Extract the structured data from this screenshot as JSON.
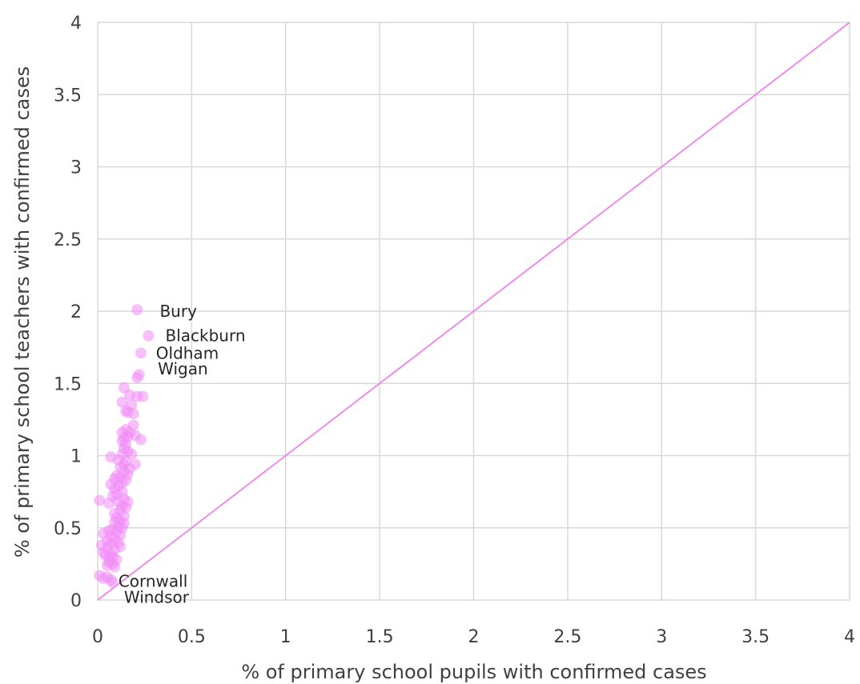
{
  "chart_data": {
    "type": "scatter",
    "title": "",
    "xlabel": "% of primary school pupils with confirmed cases",
    "ylabel": "% of primary school teachers with confirmed cases",
    "xlim": [
      0,
      4
    ],
    "ylim": [
      0,
      4
    ],
    "xticks": [
      "0",
      "0.5",
      "1",
      "1.5",
      "2",
      "2.5",
      "3",
      "3.5",
      "4"
    ],
    "yticks": [
      "0",
      "0.5",
      "1",
      "1.5",
      "2",
      "2.5",
      "3",
      "3.5",
      "4"
    ],
    "grid": true,
    "legend": "none",
    "reference_line": {
      "from": [
        0,
        0
      ],
      "to": [
        4,
        4
      ],
      "color": "#ee82ee"
    },
    "marker_color": "#f08cf5",
    "points": [
      [
        0.21,
        2.01
      ],
      [
        0.27,
        1.83
      ],
      [
        0.23,
        1.71
      ],
      [
        0.22,
        1.56
      ],
      [
        0.21,
        1.54
      ],
      [
        0.14,
        1.47
      ],
      [
        0.17,
        1.42
      ],
      [
        0.21,
        1.41
      ],
      [
        0.24,
        1.41
      ],
      [
        0.13,
        1.37
      ],
      [
        0.18,
        1.35
      ],
      [
        0.15,
        1.31
      ],
      [
        0.16,
        1.3
      ],
      [
        0.19,
        1.29
      ],
      [
        0.19,
        1.21
      ],
      [
        0.15,
        1.18
      ],
      [
        0.17,
        1.16
      ],
      [
        0.13,
        1.16
      ],
      [
        0.2,
        1.14
      ],
      [
        0.16,
        1.13
      ],
      [
        0.14,
        1.12
      ],
      [
        0.13,
        1.1
      ],
      [
        0.23,
        1.11
      ],
      [
        0.15,
        1.08
      ],
      [
        0.14,
        1.05
      ],
      [
        0.16,
        1.03
      ],
      [
        0.18,
        1.01
      ],
      [
        0.13,
        1.01
      ],
      [
        0.07,
        0.99
      ],
      [
        0.11,
        0.97
      ],
      [
        0.15,
        0.96
      ],
      [
        0.14,
        0.94
      ],
      [
        0.2,
        0.94
      ],
      [
        0.12,
        0.92
      ],
      [
        0.17,
        0.91
      ],
      [
        0.14,
        0.89
      ],
      [
        0.16,
        0.87
      ],
      [
        0.1,
        0.86
      ],
      [
        0.12,
        0.85
      ],
      [
        0.09,
        0.84
      ],
      [
        0.15,
        0.83
      ],
      [
        0.13,
        0.81
      ],
      [
        0.07,
        0.8
      ],
      [
        0.11,
        0.79
      ],
      [
        0.09,
        0.77
      ],
      [
        0.13,
        0.75
      ],
      [
        0.1,
        0.73
      ],
      [
        0.08,
        0.72
      ],
      [
        0.14,
        0.7
      ],
      [
        0.01,
        0.69
      ],
      [
        0.11,
        0.68
      ],
      [
        0.16,
        0.68
      ],
      [
        0.06,
        0.67
      ],
      [
        0.13,
        0.65
      ],
      [
        0.15,
        0.64
      ],
      [
        0.12,
        0.62
      ],
      [
        0.09,
        0.6
      ],
      [
        0.14,
        0.58
      ],
      [
        0.1,
        0.57
      ],
      [
        0.12,
        0.55
      ],
      [
        0.09,
        0.54
      ],
      [
        0.14,
        0.53
      ],
      [
        0.11,
        0.51
      ],
      [
        0.13,
        0.5
      ],
      [
        0.08,
        0.49
      ],
      [
        0.06,
        0.48
      ],
      [
        0.1,
        0.47
      ],
      [
        0.03,
        0.46
      ],
      [
        0.12,
        0.45
      ],
      [
        0.07,
        0.44
      ],
      [
        0.09,
        0.42
      ],
      [
        0.05,
        0.41
      ],
      [
        0.11,
        0.4
      ],
      [
        0.07,
        0.39
      ],
      [
        0.02,
        0.38
      ],
      [
        0.12,
        0.37
      ],
      [
        0.05,
        0.36
      ],
      [
        0.09,
        0.35
      ],
      [
        0.03,
        0.33
      ],
      [
        0.07,
        0.32
      ],
      [
        0.04,
        0.31
      ],
      [
        0.08,
        0.3
      ],
      [
        0.06,
        0.29
      ],
      [
        0.1,
        0.28
      ],
      [
        0.06,
        0.26
      ],
      [
        0.08,
        0.25
      ],
      [
        0.05,
        0.24
      ],
      [
        0.09,
        0.23
      ],
      [
        0.01,
        0.17
      ],
      [
        0.05,
        0.16
      ],
      [
        0.03,
        0.15
      ],
      [
        0.07,
        0.14
      ],
      [
        0.08,
        0.12
      ]
    ],
    "annotations": [
      {
        "text": "Bury",
        "x": 0.33,
        "y": 2.0
      },
      {
        "text": "Blackburn",
        "x": 0.36,
        "y": 1.83
      },
      {
        "text": "Oldham",
        "x": 0.31,
        "y": 1.71
      },
      {
        "text": "Wigan",
        "x": 0.32,
        "y": 1.6
      },
      {
        "text": "Cornwall",
        "x": 0.11,
        "y": 0.13
      },
      {
        "text": "Windsor",
        "x": 0.14,
        "y": 0.02
      }
    ]
  }
}
